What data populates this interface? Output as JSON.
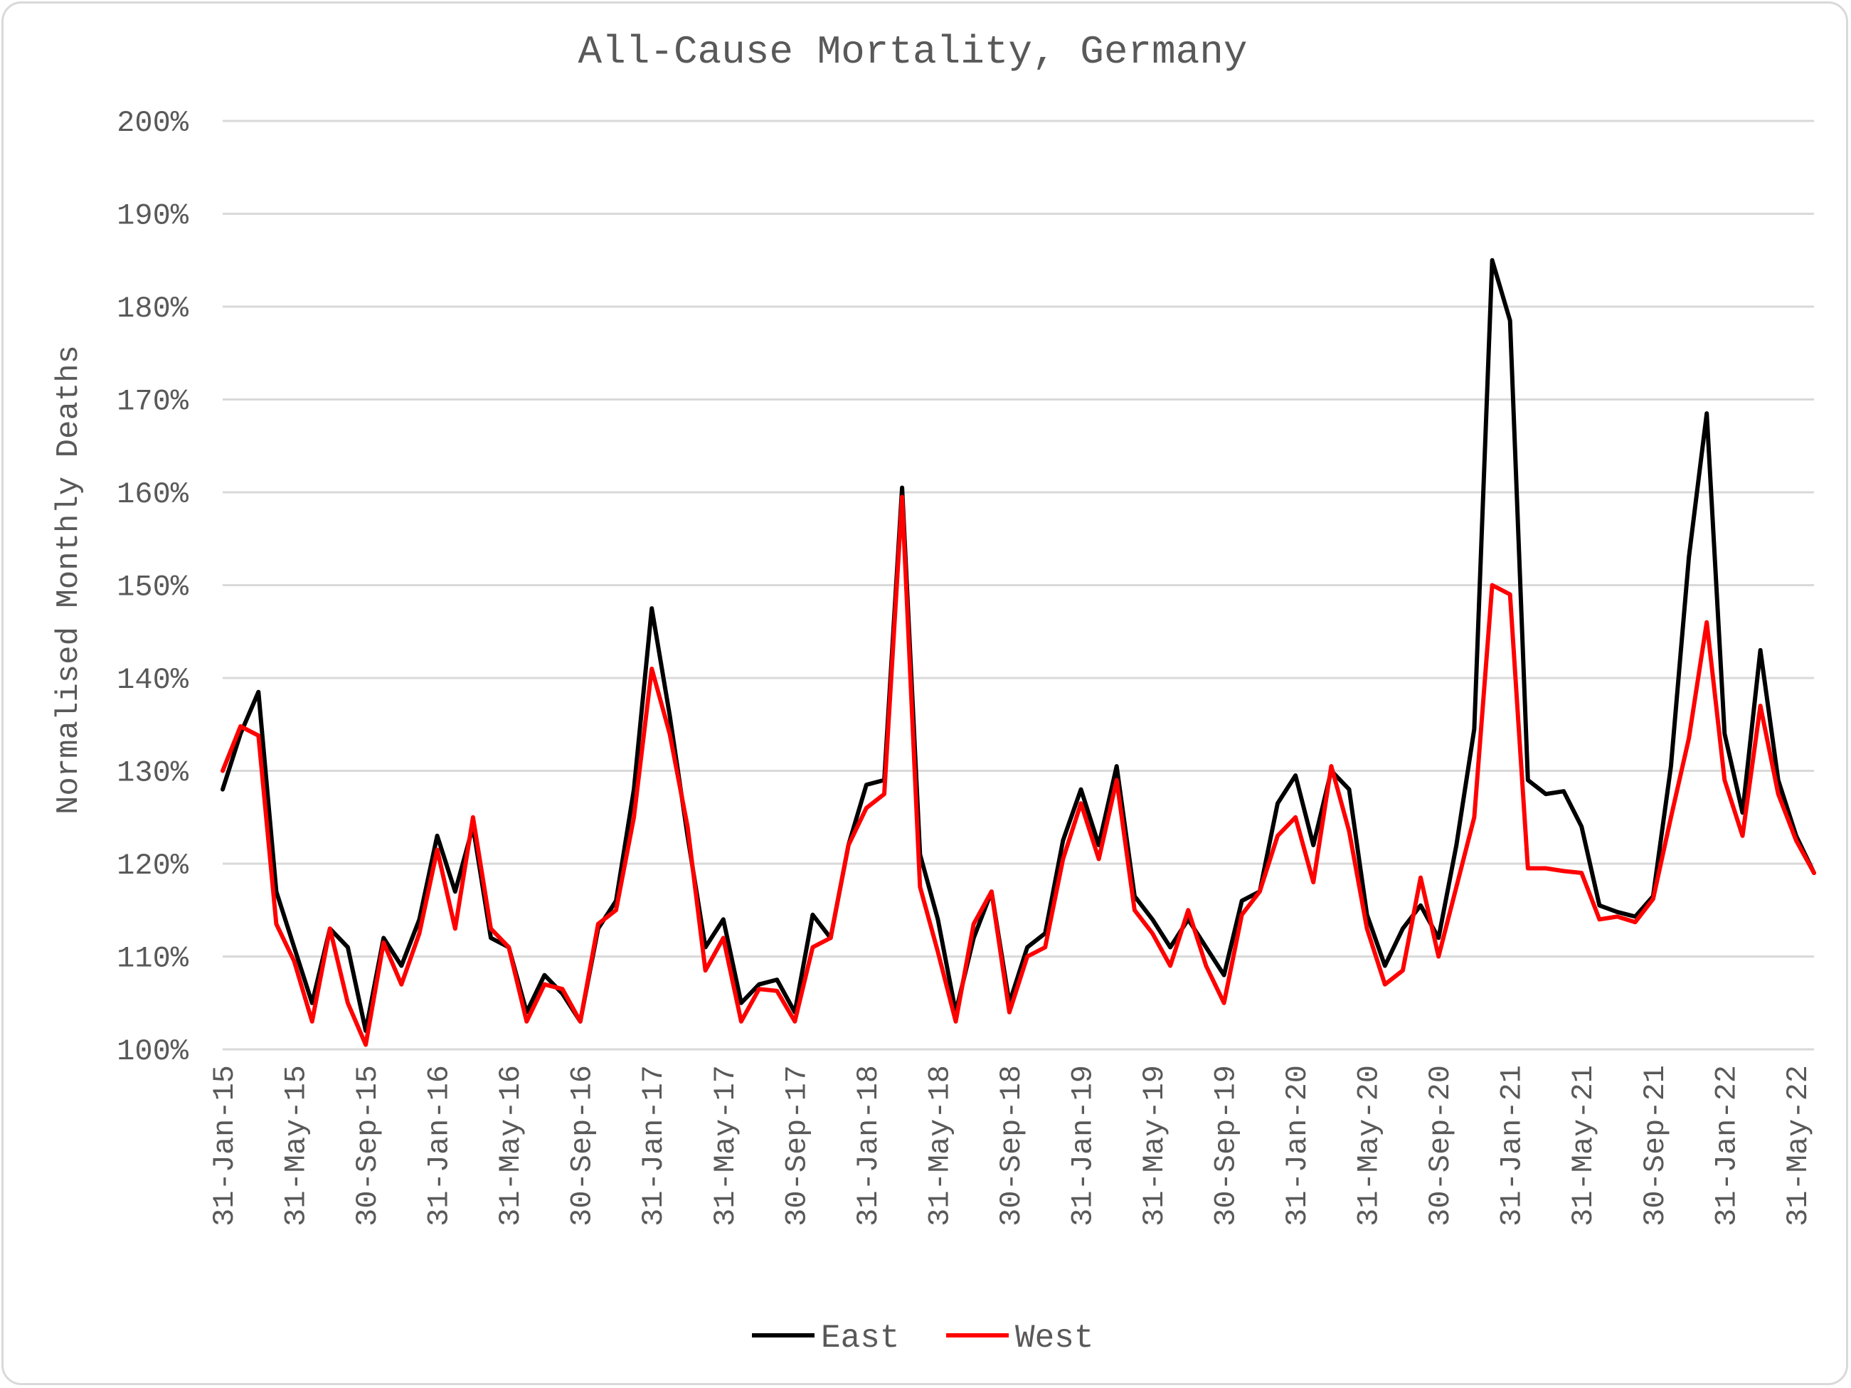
{
  "chart_data": {
    "type": "line",
    "title": "All-Cause Mortality, Germany",
    "xlabel": "",
    "ylabel": "Normalised Monthly Deaths",
    "ylim": [
      100,
      200
    ],
    "y_ticks": [
      "100%",
      "110%",
      "120%",
      "130%",
      "140%",
      "150%",
      "160%",
      "170%",
      "180%",
      "190%",
      "200%"
    ],
    "x_tick_labels": [
      "31-Jan-15",
      "31-May-15",
      "30-Sep-15",
      "31-Jan-16",
      "31-May-16",
      "30-Sep-16",
      "31-Jan-17",
      "31-May-17",
      "30-Sep-17",
      "31-Jan-18",
      "31-May-18",
      "30-Sep-18",
      "31-Jan-19",
      "31-May-19",
      "30-Sep-19",
      "31-Jan-20",
      "31-May-20",
      "30-Sep-20",
      "31-Jan-21",
      "31-May-21",
      "30-Sep-21",
      "31-Jan-22",
      "31-May-22"
    ],
    "x_tick_index_step": 4,
    "x_first": "2015-01",
    "grid": true,
    "legend_position": "bottom",
    "series": [
      {
        "name": "East",
        "color": "#000000",
        "values": [
          128,
          134,
          138.5,
          117,
          111,
          105,
          113,
          111,
          102,
          112,
          109,
          114,
          123,
          117,
          124,
          112,
          111,
          104,
          108,
          106,
          103,
          113,
          116,
          128,
          147.5,
          136,
          123,
          111,
          114,
          105,
          107,
          107.5,
          104,
          114.5,
          112,
          122,
          128.5,
          129,
          160.5,
          121,
          114,
          104,
          112,
          117,
          105,
          111,
          112.5,
          122.5,
          128,
          122,
          130.5,
          116.5,
          114,
          111,
          114,
          111,
          108,
          116,
          117,
          126.5,
          129.5,
          122,
          130,
          128,
          114.5,
          109,
          113,
          115.5,
          112,
          122,
          134.5,
          185,
          178.5,
          129,
          127.5,
          127.8,
          124,
          115.5,
          114.8,
          114.3,
          116.5,
          130.5,
          153,
          168.5,
          134,
          125.5,
          143,
          129,
          123,
          119
        ]
      },
      {
        "name": "West",
        "color": "#ff0000",
        "values": [
          130,
          134.8,
          133.8,
          113.5,
          109.5,
          103,
          113,
          105,
          100.5,
          111.5,
          107,
          112.5,
          121.5,
          113,
          125,
          113,
          111,
          103,
          107,
          106.5,
          103,
          113.5,
          115,
          125,
          141,
          134,
          124,
          108.5,
          112,
          103,
          106.5,
          106.3,
          103,
          111,
          112,
          122,
          126,
          127.5,
          159.5,
          117.5,
          110.5,
          103,
          113.5,
          117,
          104,
          110,
          111,
          120.5,
          126.5,
          120.5,
          129,
          115,
          112.5,
          109,
          115,
          109,
          105,
          114.5,
          117,
          123,
          125,
          118,
          130.5,
          123.5,
          113,
          107,
          108.5,
          118.5,
          110,
          117.5,
          125,
          150,
          149,
          119.5,
          119.5,
          119.2,
          119,
          114,
          114.3,
          113.7,
          116.2,
          125,
          133.5,
          146,
          129,
          123,
          137,
          127.5,
          122.5,
          119
        ]
      }
    ]
  }
}
